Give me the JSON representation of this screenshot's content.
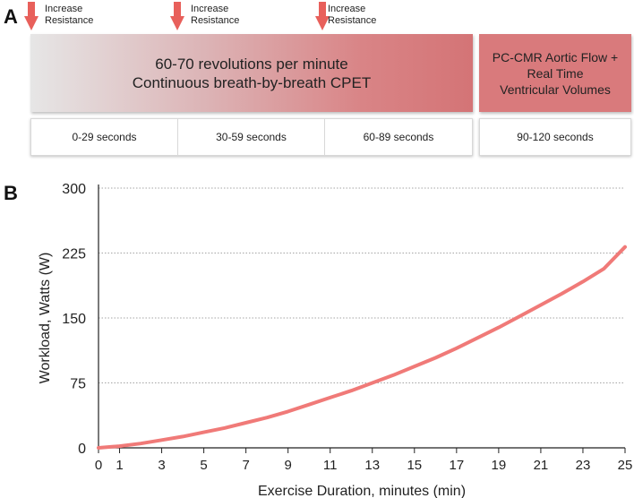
{
  "panel_a": {
    "letter": "A",
    "arrows": [
      {
        "label_line1": "Increase",
        "label_line2": "Resistance"
      },
      {
        "label_line1": "Increase",
        "label_line2": "Resistance"
      },
      {
        "label_line1": "Increase",
        "label_line2": "Resistance"
      }
    ],
    "main_bar": {
      "line1": "60-70 revolutions per minute",
      "line2": "Continuous breath-by-breath CPET"
    },
    "side_bar": {
      "line1": "PC-CMR Aortic Flow +",
      "line2": "Real Time",
      "line3": "Ventricular Volumes"
    },
    "time_segments": [
      "0-29 seconds",
      "30-59 seconds",
      "60-89 seconds"
    ],
    "time_segment_last": "90-120 seconds",
    "arrow_color": "#e8605b"
  },
  "panel_b": {
    "letter": "B"
  },
  "chart_data": {
    "type": "line",
    "title": "",
    "xlabel": "Exercise Duration, minutes (min)",
    "ylabel": "Workload, Watts (W)",
    "xlim": [
      0,
      25
    ],
    "ylim": [
      0,
      300
    ],
    "x_ticks": [
      0,
      1,
      3,
      5,
      7,
      9,
      11,
      13,
      15,
      17,
      19,
      21,
      23,
      25
    ],
    "y_ticks": [
      0,
      75,
      150,
      225,
      300
    ],
    "grid": "horizontal dotted",
    "line_color": "#f07a78",
    "series": [
      {
        "name": "Workload",
        "x": [
          0,
          1,
          2,
          3,
          4,
          5,
          6,
          7,
          8,
          9,
          10,
          11,
          12,
          13,
          14,
          15,
          16,
          17,
          18,
          19,
          20,
          21,
          22,
          23,
          24,
          25
        ],
        "y": [
          0,
          2,
          5,
          9,
          13,
          18,
          23,
          29,
          35,
          42,
          50,
          58,
          66,
          75,
          84,
          94,
          104,
          115,
          127,
          139,
          152,
          165,
          178,
          192,
          207,
          232
        ]
      }
    ]
  }
}
